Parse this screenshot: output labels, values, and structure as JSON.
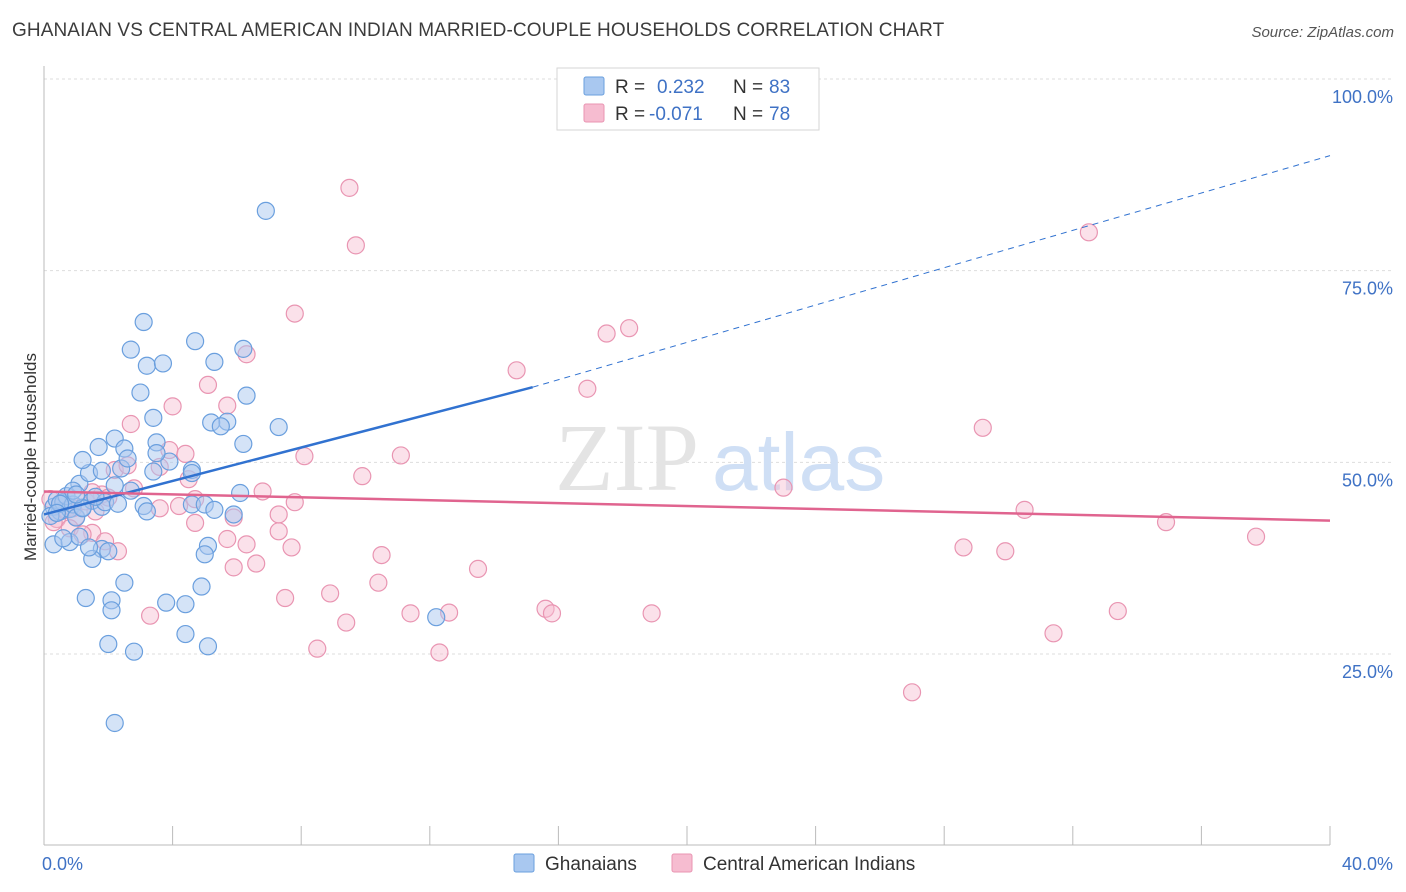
{
  "title": "GHANAIAN VS CENTRAL AMERICAN INDIAN MARRIED-COUPLE HOUSEHOLDS CORRELATION CHART",
  "source": "Source: ZipAtlas.com",
  "watermark": {
    "zip": "ZIP",
    "atlas": "atlas"
  },
  "colors": {
    "blue_fill": "#a9c8f0",
    "blue_stroke": "#6a9fde",
    "blue_line": "#3172d0",
    "pink_fill": "#f6bcd0",
    "pink_stroke": "#e995b2",
    "pink_line": "#e0648f",
    "tick_text": "#3f72c5",
    "grid": "#dddddd"
  },
  "legend": {
    "rows": [
      {
        "r_label": "R =",
        "r_value": "0.232",
        "n_label": "N =",
        "n_value": "83"
      },
      {
        "r_label": "R =",
        "r_value": "-0.071",
        "n_label": "N =",
        "n_value": "78"
      }
    ]
  },
  "chart_data": {
    "type": "scatter",
    "title": "GHANAIAN VS CENTRAL AMERICAN INDIAN MARRIED-COUPLE HOUSEHOLDS CORRELATION CHART",
    "xlabel": "",
    "ylabel": "Married-couple Households",
    "xlim": [
      0,
      40
    ],
    "ylim": [
      0,
      105
    ],
    "x_tick_labels": [
      "0.0%",
      "40.0%"
    ],
    "y_ticks": [
      25,
      50,
      75,
      100
    ],
    "y_tick_labels": [
      "25.0%",
      "50.0%",
      "75.0%",
      "100.0%"
    ],
    "grid": true,
    "legend_position": "top-center",
    "series": [
      {
        "name": "Ghanaians",
        "color": "#a9c8f0",
        "r": 0.232,
        "n": 83,
        "trend": {
          "x": [
            0,
            15.2
          ],
          "y": [
            43.2,
            59.8
          ],
          "extended_to": [
            40,
            90
          ]
        },
        "points": [
          [
            0.3,
            44.2
          ],
          [
            0.5,
            43.6
          ],
          [
            0.4,
            45.1
          ],
          [
            0.6,
            44.8
          ],
          [
            0.8,
            43.9
          ],
          [
            0.7,
            45.6
          ],
          [
            0.2,
            43.0
          ],
          [
            0.9,
            44.5
          ],
          [
            1.0,
            42.8
          ],
          [
            1.2,
            44.1
          ],
          [
            1.5,
            45.0
          ],
          [
            1.8,
            44.2
          ],
          [
            0.3,
            39.3
          ],
          [
            0.8,
            39.6
          ],
          [
            1.1,
            40.3
          ],
          [
            1.8,
            38.7
          ],
          [
            1.5,
            37.4
          ],
          [
            0.6,
            40.1
          ],
          [
            1.4,
            38.9
          ],
          [
            2.0,
            38.4
          ],
          [
            1.1,
            47.2
          ],
          [
            1.4,
            48.6
          ],
          [
            1.8,
            48.9
          ],
          [
            1.2,
            50.3
          ],
          [
            2.4,
            49.2
          ],
          [
            1.7,
            52.0
          ],
          [
            2.2,
            53.1
          ],
          [
            2.5,
            51.8
          ],
          [
            2.6,
            50.5
          ],
          [
            3.5,
            52.6
          ],
          [
            3.4,
            48.8
          ],
          [
            3.9,
            50.1
          ],
          [
            4.6,
            49.0
          ],
          [
            4.6,
            48.6
          ],
          [
            3.5,
            51.2
          ],
          [
            3.4,
            55.8
          ],
          [
            3.0,
            59.1
          ],
          [
            3.2,
            62.6
          ],
          [
            3.7,
            62.9
          ],
          [
            2.7,
            64.7
          ],
          [
            3.1,
            68.3
          ],
          [
            4.7,
            65.8
          ],
          [
            5.3,
            63.1
          ],
          [
            5.7,
            55.3
          ],
          [
            5.2,
            55.2
          ],
          [
            5.5,
            54.7
          ],
          [
            6.2,
            52.4
          ],
          [
            6.3,
            58.7
          ],
          [
            6.2,
            64.8
          ],
          [
            7.3,
            54.6
          ],
          [
            4.6,
            44.5
          ],
          [
            5.0,
            44.5
          ],
          [
            5.3,
            43.8
          ],
          [
            5.9,
            43.2
          ],
          [
            6.1,
            46.0
          ],
          [
            1.9,
            44.8
          ],
          [
            2.3,
            44.6
          ],
          [
            3.1,
            44.3
          ],
          [
            3.2,
            43.6
          ],
          [
            0.9,
            46.3
          ],
          [
            2.5,
            34.3
          ],
          [
            1.3,
            32.3
          ],
          [
            2.1,
            32.0
          ],
          [
            2.1,
            30.7
          ],
          [
            3.8,
            31.7
          ],
          [
            4.4,
            31.5
          ],
          [
            4.4,
            27.6
          ],
          [
            2.0,
            26.3
          ],
          [
            2.8,
            25.3
          ],
          [
            5.1,
            26.0
          ],
          [
            4.9,
            33.8
          ],
          [
            5.1,
            39.1
          ],
          [
            5.0,
            38.0
          ],
          [
            6.9,
            82.8
          ],
          [
            12.2,
            29.8
          ],
          [
            2.2,
            16.0
          ],
          [
            2.2,
            47.0
          ],
          [
            1.6,
            45.5
          ],
          [
            0.5,
            44.6
          ],
          [
            1.2,
            44.0
          ],
          [
            0.4,
            43.4
          ],
          [
            1.0,
            45.8
          ],
          [
            2.7,
            46.3
          ]
        ]
      },
      {
        "name": "Central American Indians",
        "color": "#f6bcd0",
        "r": -0.071,
        "n": 78,
        "trend": {
          "x": [
            0,
            40
          ],
          "y": [
            46.2,
            42.4
          ]
        },
        "points": [
          [
            0.2,
            45.2
          ],
          [
            0.5,
            44.6
          ],
          [
            0.7,
            43.8
          ],
          [
            1.0,
            42.9
          ],
          [
            1.3,
            44.9
          ],
          [
            1.6,
            43.6
          ],
          [
            0.4,
            42.6
          ],
          [
            0.8,
            41.4
          ],
          [
            1.8,
            45.8
          ],
          [
            1.5,
            40.8
          ],
          [
            1.9,
            39.7
          ],
          [
            2.3,
            38.4
          ],
          [
            2.2,
            49.0
          ],
          [
            2.6,
            49.6
          ],
          [
            2.7,
            55.0
          ],
          [
            3.6,
            49.4
          ],
          [
            3.9,
            51.6
          ],
          [
            4.4,
            51.1
          ],
          [
            4.0,
            57.3
          ],
          [
            5.1,
            60.1
          ],
          [
            5.7,
            57.4
          ],
          [
            6.3,
            64.1
          ],
          [
            5.9,
            42.8
          ],
          [
            6.3,
            39.3
          ],
          [
            7.3,
            41.0
          ],
          [
            7.3,
            43.2
          ],
          [
            7.7,
            38.9
          ],
          [
            7.8,
            44.8
          ],
          [
            8.1,
            50.8
          ],
          [
            7.8,
            69.4
          ],
          [
            9.5,
            85.8
          ],
          [
            9.7,
            78.3
          ],
          [
            9.9,
            48.2
          ],
          [
            11.1,
            50.9
          ],
          [
            10.5,
            37.9
          ],
          [
            10.4,
            34.3
          ],
          [
            8.9,
            32.9
          ],
          [
            9.4,
            29.1
          ],
          [
            7.5,
            32.3
          ],
          [
            11.4,
            30.3
          ],
          [
            12.6,
            30.4
          ],
          [
            12.3,
            25.2
          ],
          [
            13.5,
            36.1
          ],
          [
            14.7,
            62.0
          ],
          [
            15.6,
            30.9
          ],
          [
            15.8,
            30.3
          ],
          [
            16.9,
            59.6
          ],
          [
            17.5,
            66.8
          ],
          [
            18.2,
            67.5
          ],
          [
            18.9,
            30.3
          ],
          [
            23.0,
            46.7
          ],
          [
            27.0,
            20.0
          ],
          [
            28.6,
            38.9
          ],
          [
            29.2,
            54.5
          ],
          [
            29.9,
            38.4
          ],
          [
            30.5,
            43.8
          ],
          [
            31.4,
            27.7
          ],
          [
            32.5,
            80.0
          ],
          [
            33.4,
            30.6
          ],
          [
            34.9,
            42.2
          ],
          [
            37.7,
            40.3
          ],
          [
            4.2,
            44.3
          ],
          [
            4.7,
            45.2
          ],
          [
            6.8,
            46.2
          ],
          [
            5.7,
            40.0
          ],
          [
            3.3,
            30.0
          ],
          [
            2.8,
            46.6
          ],
          [
            3.6,
            44.0
          ],
          [
            4.7,
            42.1
          ],
          [
            5.9,
            36.3
          ],
          [
            8.5,
            25.7
          ],
          [
            1.2,
            40.6
          ],
          [
            2.0,
            45.4
          ],
          [
            1.5,
            46.1
          ],
          [
            0.3,
            42.2
          ],
          [
            0.9,
            44.0
          ],
          [
            4.5,
            47.8
          ],
          [
            6.6,
            36.8
          ]
        ]
      }
    ]
  },
  "bottom_legend": {
    "items": [
      {
        "label": "Ghanaians"
      },
      {
        "label": "Central American Indians"
      }
    ]
  }
}
